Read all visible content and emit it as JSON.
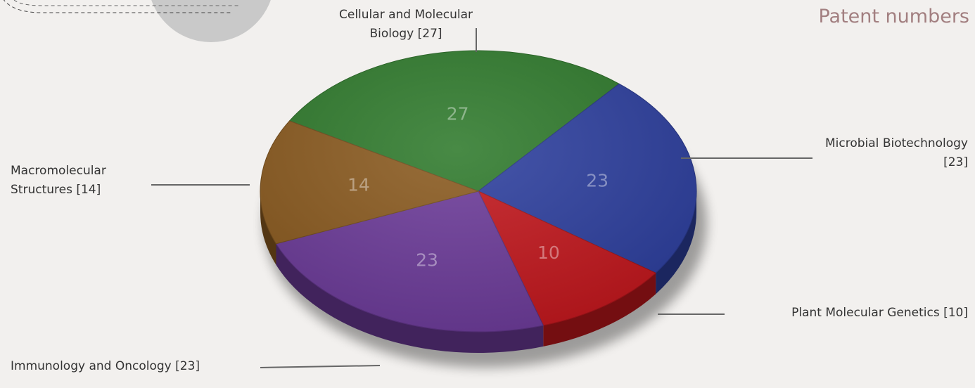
{
  "chart_data": {
    "type": "pie",
    "title": "Patent numbers",
    "categories": [
      "Cellular and Molecular Biology [27]",
      "Microbial Biotechnology [23]",
      "Plant Molecular Genetics [10]",
      "Immunology and Oncology [23]",
      "Macromolecular Structures [14]"
    ],
    "values": [
      27,
      23,
      10,
      23,
      14
    ],
    "colors": [
      "#2f7a2c",
      "#2d3f9e",
      "#c2171d",
      "#6c3b99",
      "#8a5a1f"
    ]
  }
}
